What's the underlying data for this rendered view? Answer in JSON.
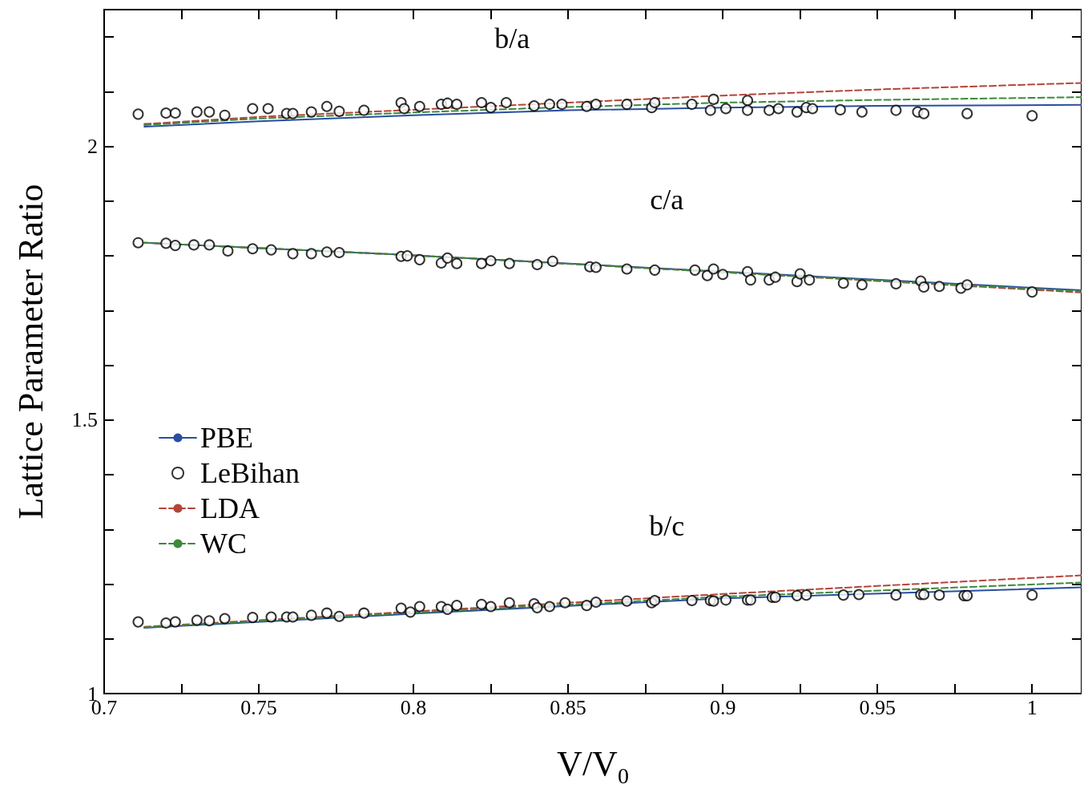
{
  "chart_data": {
    "type": "line",
    "xlabel": "V/V$_{0}$",
    "ylabel": "Lattice Parameter Ratio",
    "xlim": [
      0.7,
      1.016
    ],
    "ylim": [
      1,
      2.25
    ],
    "xticks": [
      0.7,
      {
        "value": 0.725,
        "label": null
      },
      0.75,
      {
        "value": 0.775,
        "label": null
      },
      0.8,
      {
        "value": 0.825,
        "label": null
      },
      0.85,
      {
        "value": 0.875,
        "label": null
      },
      0.9,
      {
        "value": 0.925,
        "label": null
      },
      0.95,
      {
        "value": 0.975,
        "label": null
      },
      1
    ],
    "yticks": [
      1,
      {
        "value": 1.1,
        "label": null
      },
      {
        "value": 1.2,
        "label": null
      },
      {
        "value": 1.3,
        "label": null
      },
      {
        "value": 1.4,
        "label": null
      },
      1.5,
      {
        "value": 1.6,
        "label": null
      },
      {
        "value": 1.7,
        "label": null
      },
      {
        "value": 1.8,
        "label": null
      },
      {
        "value": 1.9,
        "label": null
      },
      2,
      {
        "value": 2.1,
        "label": null
      },
      {
        "value": 2.2,
        "label": null
      }
    ],
    "grid": false,
    "legend": "left",
    "annotations": [
      "b/a",
      "c/a",
      "b/c"
    ],
    "series": [
      {
        "name": "PBE",
        "color": "#2a4ea0",
        "line_style": "solid",
        "marker": "none",
        "x": [
          0.713,
          0.75,
          0.8,
          0.85,
          0.9,
          0.95,
          1.016,
          null,
          0.713,
          0.8,
          0.9,
          1.016,
          null,
          0.713,
          0.8,
          0.9,
          1.016
        ],
        "values": [
          2.036,
          2.046,
          2.057,
          2.066,
          2.071,
          2.074,
          2.076,
          null,
          1.824,
          1.801,
          1.771,
          1.737,
          null,
          1.12,
          1.146,
          1.174,
          1.194
        ]
      },
      {
        "name": "LeBihan",
        "type": "scatter",
        "color": "#000000",
        "marker": "circle",
        "x": [
          0.711,
          0.72,
          0.723,
          0.73,
          0.734,
          0.739,
          0.748,
          0.753,
          0.759,
          0.761,
          0.767,
          0.772,
          0.776,
          0.784,
          0.796,
          0.797,
          0.802,
          0.809,
          0.811,
          0.814,
          0.822,
          0.825,
          0.83,
          0.839,
          0.844,
          0.848,
          0.856,
          0.859,
          0.869,
          0.877,
          0.878,
          0.89,
          0.896,
          0.897,
          0.901,
          0.908,
          0.908,
          0.915,
          0.918,
          0.924,
          0.927,
          0.929,
          0.938,
          0.945,
          0.956,
          0.963,
          0.965,
          0.979,
          1.0,
          0.711,
          0.72,
          0.723,
          0.729,
          0.734,
          0.74,
          0.748,
          0.754,
          0.761,
          0.767,
          0.772,
          0.776,
          0.796,
          0.798,
          0.802,
          0.809,
          0.811,
          0.814,
          0.822,
          0.825,
          0.831,
          0.84,
          0.845,
          0.857,
          0.859,
          0.869,
          0.878,
          0.891,
          0.895,
          0.897,
          0.9,
          0.908,
          0.909,
          0.915,
          0.917,
          0.924,
          0.925,
          0.928,
          0.939,
          0.945,
          0.956,
          0.964,
          0.965,
          0.97,
          0.977,
          0.979,
          1.0,
          0.711,
          0.72,
          0.723,
          0.73,
          0.734,
          0.739,
          0.748,
          0.754,
          0.759,
          0.761,
          0.767,
          0.772,
          0.776,
          0.784,
          0.796,
          0.799,
          0.802,
          0.809,
          0.811,
          0.814,
          0.822,
          0.825,
          0.831,
          0.839,
          0.84,
          0.844,
          0.849,
          0.856,
          0.859,
          0.869,
          0.877,
          0.878,
          0.89,
          0.896,
          0.897,
          0.901,
          0.908,
          0.909,
          0.916,
          0.917,
          0.924,
          0.927,
          0.939,
          0.944,
          0.956,
          0.964,
          0.965,
          0.97,
          0.978,
          0.979,
          1.0
        ],
        "values": [
          2.059,
          2.061,
          2.061,
          2.063,
          2.063,
          2.057,
          2.069,
          2.069,
          2.06,
          2.06,
          2.063,
          2.073,
          2.064,
          2.066,
          2.08,
          2.069,
          2.073,
          2.077,
          2.079,
          2.077,
          2.08,
          2.071,
          2.08,
          2.074,
          2.077,
          2.077,
          2.073,
          2.077,
          2.077,
          2.071,
          2.08,
          2.077,
          2.066,
          2.086,
          2.069,
          2.084,
          2.066,
          2.066,
          2.069,
          2.063,
          2.071,
          2.069,
          2.067,
          2.063,
          2.066,
          2.063,
          2.06,
          2.06,
          2.056,
          1.824,
          1.823,
          1.819,
          1.82,
          1.82,
          1.809,
          1.813,
          1.811,
          1.804,
          1.804,
          1.807,
          1.806,
          1.799,
          1.8,
          1.793,
          1.787,
          1.796,
          1.786,
          1.786,
          1.791,
          1.786,
          1.784,
          1.79,
          1.78,
          1.779,
          1.776,
          1.774,
          1.774,
          1.764,
          1.776,
          1.766,
          1.771,
          1.756,
          1.756,
          1.761,
          1.753,
          1.767,
          1.756,
          1.75,
          1.747,
          1.749,
          1.754,
          1.743,
          1.744,
          1.741,
          1.747,
          1.734,
          1.131,
          1.129,
          1.131,
          1.134,
          1.133,
          1.137,
          1.139,
          1.14,
          1.14,
          1.14,
          1.143,
          1.147,
          1.141,
          1.147,
          1.156,
          1.149,
          1.159,
          1.159,
          1.154,
          1.161,
          1.163,
          1.159,
          1.166,
          1.164,
          1.157,
          1.159,
          1.166,
          1.161,
          1.167,
          1.169,
          1.166,
          1.17,
          1.17,
          1.17,
          1.169,
          1.171,
          1.171,
          1.171,
          1.176,
          1.176,
          1.179,
          1.18,
          1.18,
          1.181,
          1.18,
          1.181,
          1.181,
          1.18,
          1.179,
          1.179,
          1.18
        ]
      },
      {
        "name": "LDA",
        "color": "#b5443a",
        "line_style": "dashed",
        "marker": "none",
        "x": [
          0.713,
          0.75,
          0.8,
          0.85,
          0.9,
          0.95,
          1.016,
          null,
          0.713,
          0.8,
          0.9,
          1.016,
          null,
          0.713,
          0.8,
          0.9,
          1.016
        ],
        "values": [
          2.041,
          2.054,
          2.067,
          2.08,
          2.093,
          2.104,
          2.116,
          null,
          1.824,
          1.801,
          1.77,
          1.733,
          null,
          1.122,
          1.15,
          1.182,
          1.216
        ]
      },
      {
        "name": "WC",
        "color": "#3c8a3c",
        "line_style": "dashed",
        "marker": "none",
        "x": [
          0.713,
          0.75,
          0.8,
          0.85,
          0.9,
          0.95,
          1.016,
          null,
          0.713,
          0.8,
          0.9,
          1.016,
          null,
          0.713,
          0.8,
          0.9,
          1.016
        ],
        "values": [
          2.039,
          2.051,
          2.062,
          2.072,
          2.08,
          2.085,
          2.09,
          null,
          1.824,
          1.801,
          1.77,
          1.735,
          null,
          1.121,
          1.148,
          1.177,
          1.203
        ]
      }
    ]
  }
}
